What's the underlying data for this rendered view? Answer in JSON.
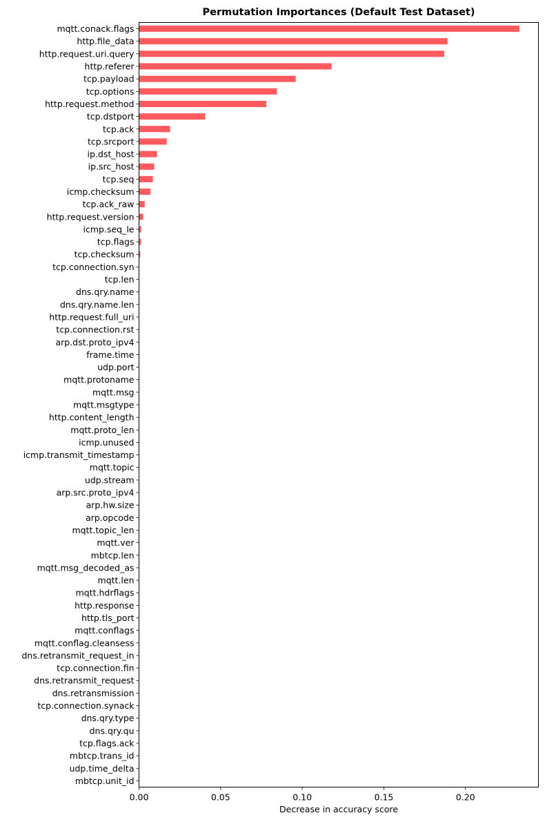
{
  "chart_data": {
    "type": "bar",
    "orientation": "horizontal",
    "title": "Permutation Importances (Default Test Dataset)",
    "xlabel": "Decrease in accuracy score",
    "ylabel": "",
    "xlim": [
      0,
      0.2447
    ],
    "xticks": [
      0.0,
      0.05,
      0.1,
      0.15,
      0.2
    ],
    "xtick_labels": [
      "0.00",
      "0.05",
      "0.10",
      "0.15",
      "0.20"
    ],
    "grid": false,
    "legend": "none",
    "bar_color": "#ff5a5f",
    "categories": [
      "mqtt.conack.flags",
      "http.file_data",
      "http.request.uri.query",
      "http.referer",
      "tcp.payload",
      "tcp.options",
      "http.request.method",
      "tcp.dstport",
      "tcp.ack",
      "tcp.srcport",
      "ip.dst_host",
      "ip.src_host",
      "tcp.seq",
      "icmp.checksum",
      "tcp.ack_raw",
      "http.request.version",
      "icmp.seq_le",
      "tcp.flags",
      "tcp.checksum",
      "tcp.connection.syn",
      "tcp.len",
      "dns.qry.name",
      "dns.qry.name.len",
      "http.request.full_uri",
      "tcp.connection.rst",
      "arp.dst.proto_ipv4",
      "frame.time",
      "udp.port",
      "mqtt.protoname",
      "mqtt.msg",
      "mqtt.msgtype",
      "http.content_length",
      "mqtt.proto_len",
      "icmp.unused",
      "icmp.transmit_timestamp",
      "mqtt.topic",
      "udp.stream",
      "arp.src.proto_ipv4",
      "arp.hw.size",
      "arp.opcode",
      "mqtt.topic_len",
      "mqtt.ver",
      "mbtcp.len",
      "mqtt.msg_decoded_as",
      "mqtt.len",
      "mqtt.hdrflags",
      "http.response",
      "http.tls_port",
      "mqtt.conflags",
      "mqtt.conflag.cleansess",
      "dns.retransmit_request_in",
      "tcp.connection.fin",
      "dns.retransmit_request",
      "dns.retransmission",
      "tcp.connection.synack",
      "dns.qry.type",
      "dns.qry.qu",
      "tcp.flags.ack",
      "mbtcp.trans_id",
      "udp.time_delta",
      "mbtcp.unit_id"
    ],
    "values": [
      0.233,
      0.189,
      0.187,
      0.118,
      0.096,
      0.0845,
      0.078,
      0.0405,
      0.019,
      0.017,
      0.011,
      0.0093,
      0.0085,
      0.007,
      0.0035,
      0.0025,
      0.0013,
      0.0012,
      0.0008,
      0.0002,
      0.0001,
      0,
      0,
      0,
      0,
      0,
      0,
      0,
      0,
      0,
      0,
      0,
      0,
      0,
      0,
      0,
      0,
      0,
      0,
      0,
      0,
      0,
      0,
      0,
      0,
      0,
      0,
      0,
      0,
      0,
      0,
      0,
      0,
      0,
      0,
      0,
      0,
      0,
      0,
      0,
      0
    ]
  }
}
